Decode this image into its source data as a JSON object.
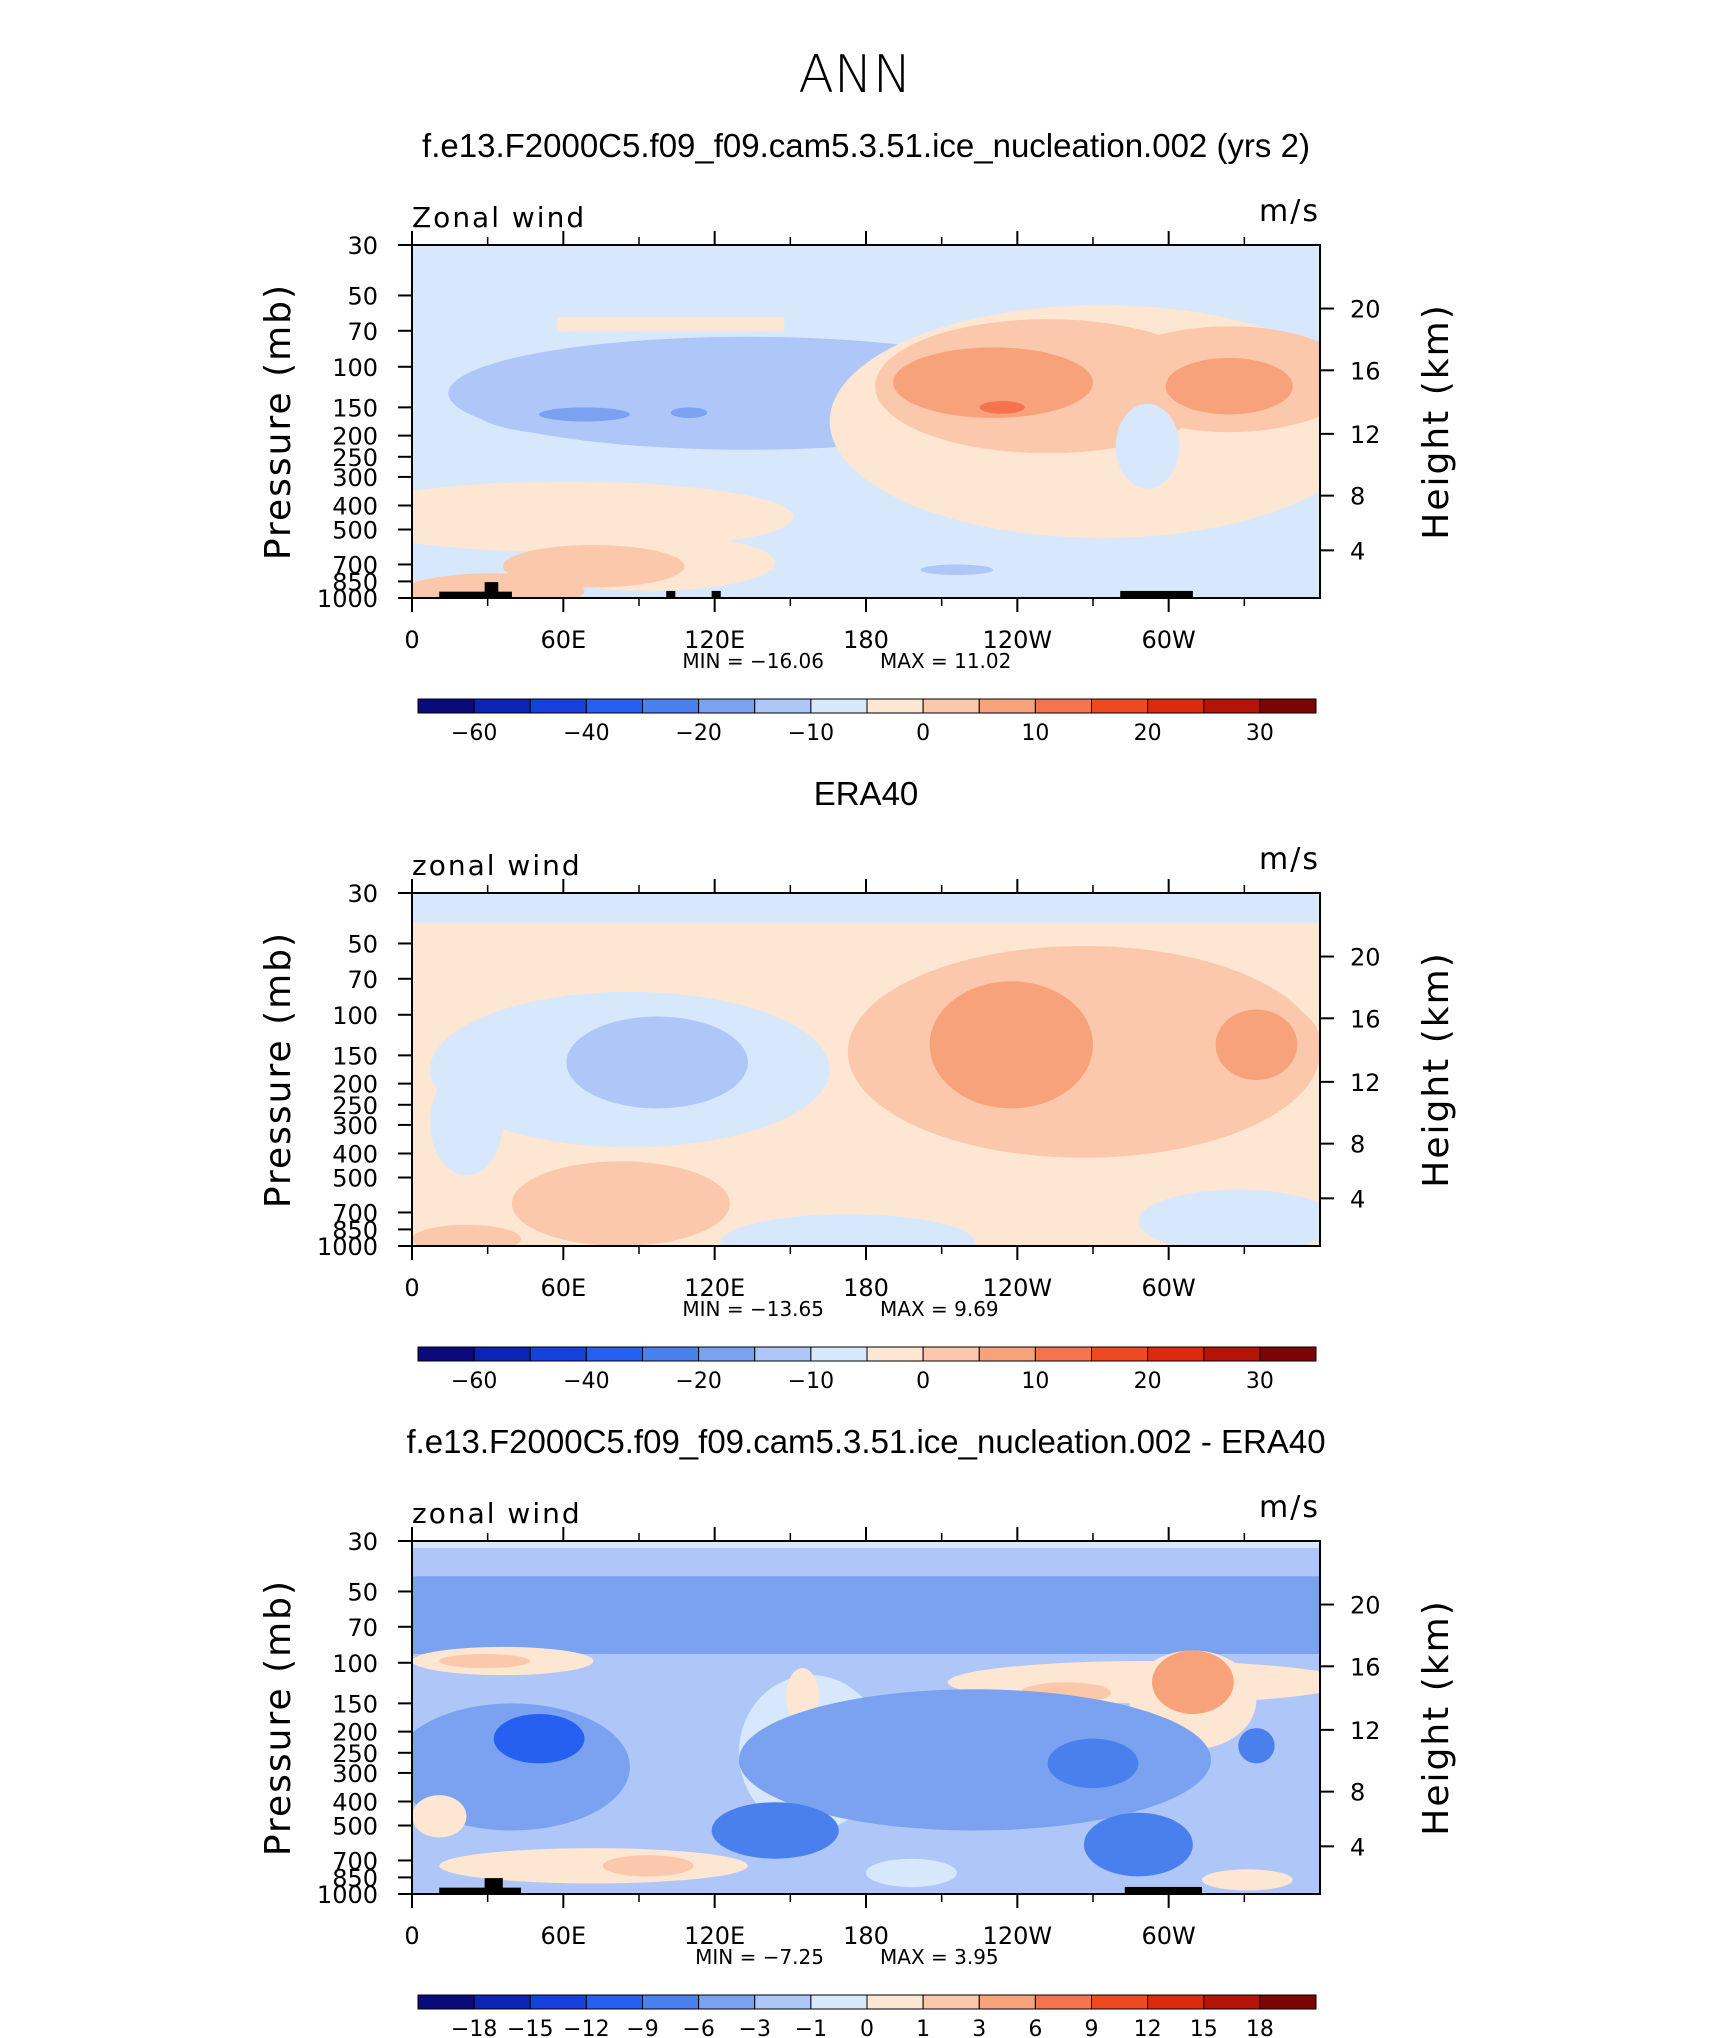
{
  "page_title": "ANN",
  "chart_data": [
    {
      "type": "contour",
      "title": "f.e13.F2000C5.f09_f09.cam5.3.51.ice_nucleation.002 (yrs 2)",
      "variable_label": "Zonal wind",
      "units_label": "m/s",
      "xlabel": "",
      "ylabel": "Pressure (mb)",
      "y2label": "Height (km)",
      "x_ticks": [
        "0",
        "60E",
        "120E",
        "180",
        "120W",
        "60W"
      ],
      "y_ticks": [
        "30",
        "50",
        "70",
        "100",
        "150",
        "200",
        "250",
        "300",
        "400",
        "500",
        "700",
        "850",
        "1000"
      ],
      "y2_ticks": [
        "20",
        "16",
        "12",
        "8",
        "4"
      ],
      "min_text": "MIN =  −16.06",
      "max_text": "MAX =  11.02",
      "min": -16.06,
      "max": 11.02,
      "colorbar_labels": [
        "−60",
        "−40",
        "−20",
        "−10",
        "0",
        "10",
        "20",
        "30"
      ]
    },
    {
      "type": "contour",
      "title": "ERA40",
      "variable_label": "zonal wind",
      "units_label": "m/s",
      "xlabel": "",
      "ylabel": "Pressure (mb)",
      "y2label": "Height (km)",
      "x_ticks": [
        "0",
        "60E",
        "120E",
        "180",
        "120W",
        "60W"
      ],
      "y_ticks": [
        "30",
        "50",
        "70",
        "100",
        "150",
        "200",
        "250",
        "300",
        "400",
        "500",
        "700",
        "850",
        "1000"
      ],
      "y2_ticks": [
        "20",
        "16",
        "12",
        "8",
        "4"
      ],
      "min_text": "MIN =  −13.65",
      "max_text": "MAX =   9.69",
      "min": -13.65,
      "max": 9.69,
      "colorbar_labels": [
        "−60",
        "−40",
        "−20",
        "−10",
        "0",
        "10",
        "20",
        "30"
      ]
    },
    {
      "type": "contour",
      "title": "f.e13.F2000C5.f09_f09.cam5.3.51.ice_nucleation.002 - ERA40",
      "variable_label": "zonal wind",
      "units_label": "m/s",
      "xlabel": "",
      "ylabel": "Pressure (mb)",
      "y2label": "Height (km)",
      "x_ticks": [
        "0",
        "60E",
        "120E",
        "180",
        "120W",
        "60W"
      ],
      "y_ticks": [
        "30",
        "50",
        "70",
        "100",
        "150",
        "200",
        "250",
        "300",
        "400",
        "500",
        "700",
        "850",
        "1000"
      ],
      "y2_ticks": [
        "20",
        "16",
        "12",
        "8",
        "4"
      ],
      "min_text": "MIN =   −7.25",
      "max_text": "MAX =   3.95",
      "min": -7.25,
      "max": 3.95,
      "colorbar_labels": [
        "−18",
        "−15",
        "−12",
        "−9",
        "−6",
        "−3",
        "−1",
        "0",
        "1",
        "3",
        "6",
        "9",
        "12",
        "15",
        "18"
      ]
    }
  ],
  "colormap": [
    "#0a0a7c",
    "#0c24b4",
    "#1540dc",
    "#2660f0",
    "#4a80ee",
    "#7aa2f0",
    "#aec6f8",
    "#d8e8fc",
    "#fde6d2",
    "#fbc8ac",
    "#f8a27c",
    "#f5744e",
    "#ee4a22",
    "#dc2a0c",
    "#b41408",
    "#7c0404"
  ]
}
